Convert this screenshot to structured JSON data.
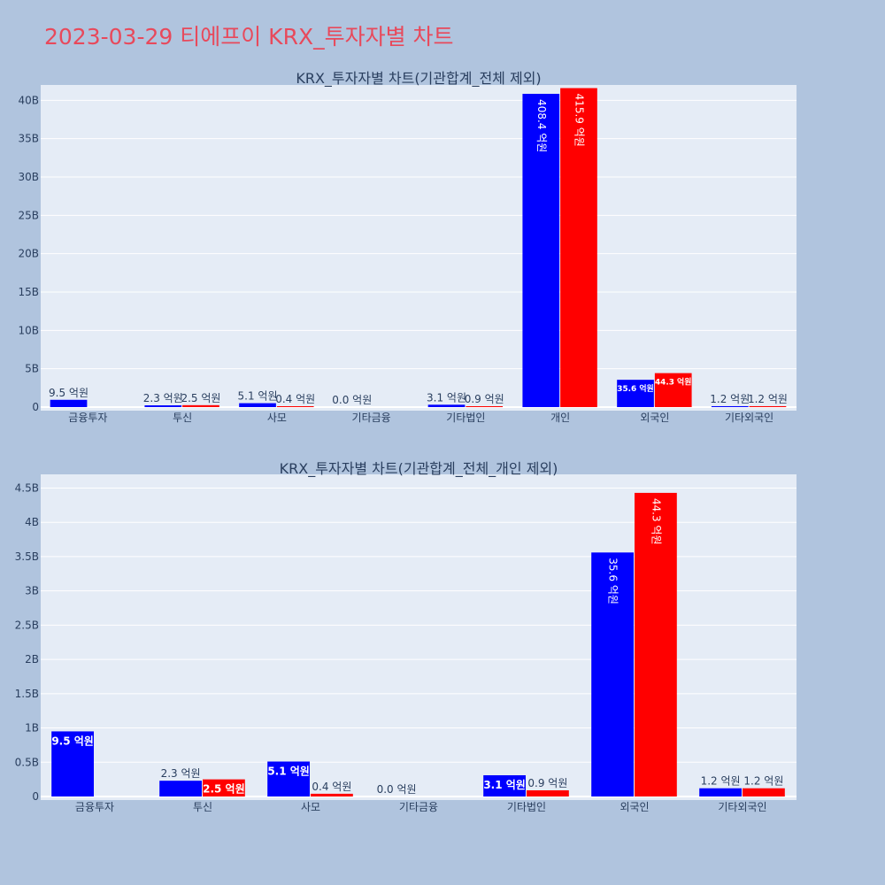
{
  "page": {
    "title": "2023-03-29 티에프이 KRX_투자자별 차트",
    "background": "#b0c4de",
    "title_color": "#e8495b",
    "plot_background": "#e5ecf6"
  },
  "series_colors": [
    "#0000ff",
    "#ff0000"
  ],
  "chart_data": [
    {
      "type": "bar",
      "title": "KRX_투자자별 차트(기관합계_전체 제외)",
      "categories": [
        "금융투자",
        "투신",
        "사모",
        "기타금융",
        "기타법인",
        "개인",
        "외국인",
        "기타외국인"
      ],
      "series": [
        {
          "values": [
            950000000,
            230000000,
            510000000,
            0,
            310000000,
            40840000000,
            3560000000,
            120000000
          ],
          "labels": [
            "9.5 억원",
            "2.3 억원",
            "5.1 억원",
            "0.0 억원",
            "3.1 억원",
            "408.4 억원",
            "35.6 억원",
            "1.2 억원"
          ]
        },
        {
          "values": [
            0,
            250000000,
            40000000,
            0,
            90000000,
            41590000000,
            4430000000,
            120000000
          ],
          "labels": [
            "",
            "2.5 억원",
            "0.4 억원",
            "",
            "0.9 억원",
            "415.9 억원",
            "44.3 억원",
            "1.2 억원"
          ]
        }
      ],
      "ylim": [
        0,
        42000000000
      ],
      "yticks": [
        0,
        5000000000,
        10000000000,
        15000000000,
        20000000000,
        25000000000,
        30000000000,
        35000000000,
        40000000000
      ],
      "ytick_labels": [
        "0",
        "5B",
        "10B",
        "15B",
        "20B",
        "25B",
        "30B",
        "35B",
        "40B"
      ],
      "grid": true,
      "legend": "none"
    },
    {
      "type": "bar",
      "title": "KRX_투자자별 차트(기관합계_전체_개인 제외)",
      "categories": [
        "금융투자",
        "투신",
        "사모",
        "기타금융",
        "기타법인",
        "외국인",
        "기타외국인"
      ],
      "series": [
        {
          "values": [
            950000000,
            230000000,
            510000000,
            0,
            310000000,
            3560000000,
            120000000
          ],
          "labels": [
            "9.5 억원",
            "2.3 억원",
            "5.1 억원",
            "0.0 억원",
            "3.1 억원",
            "35.6 억원",
            "1.2 억원"
          ]
        },
        {
          "values": [
            0,
            250000000,
            40000000,
            0,
            90000000,
            4430000000,
            120000000
          ],
          "labels": [
            "",
            "2.5 억원",
            "0.4 억원",
            "",
            "0.9 억원",
            "44.3 억원",
            "1.2 억원"
          ]
        }
      ],
      "ylim": [
        0,
        4700000000
      ],
      "yticks": [
        0,
        500000000,
        1000000000,
        1500000000,
        2000000000,
        2500000000,
        3000000000,
        3500000000,
        4000000000,
        4500000000
      ],
      "ytick_labels": [
        "0",
        "0.5B",
        "1B",
        "1.5B",
        "2B",
        "2.5B",
        "3B",
        "3.5B",
        "4B",
        "4.5B"
      ],
      "grid": true,
      "legend": "none"
    }
  ]
}
